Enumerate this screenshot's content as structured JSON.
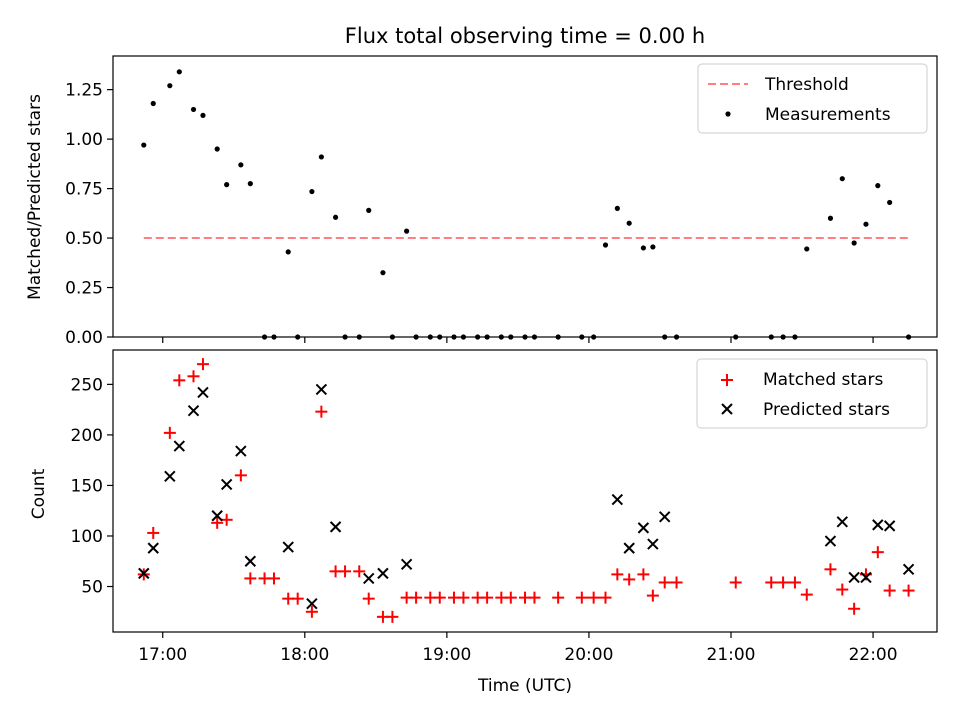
{
  "figure": {
    "title": "Flux total observing time = 0.00 h",
    "xlabel": "Time (UTC)"
  },
  "chart_data": [
    {
      "type": "scatter",
      "ylabel": "Matched/Predicted stars",
      "ylim": [
        0,
        1.42
      ],
      "yticks": [
        0.0,
        0.25,
        0.5,
        0.75,
        1.0,
        1.25
      ],
      "ytick_labels": [
        "0.00",
        "0.25",
        "0.50",
        "0.75",
        "1.00",
        "1.25"
      ],
      "xlim": [
        "16:39",
        "22:27"
      ],
      "xticks": [
        "17:00",
        "18:00",
        "19:00",
        "20:00",
        "21:00",
        "22:00"
      ],
      "grid": false,
      "legend": {
        "placement": "top-right",
        "entries": [
          {
            "label": "Threshold",
            "color": "#ff7f7f",
            "marker": "dashed-line"
          },
          {
            "label": "Measurements",
            "color": "#000000",
            "marker": "dot"
          }
        ]
      },
      "threshold": {
        "value": 0.5,
        "x_range": [
          "16:52",
          "22:15"
        ],
        "color": "#ff7f7f"
      },
      "series": [
        {
          "name": "Measurements",
          "color": "#000000",
          "x": [
            "16:52",
            "16:56",
            "17:03",
            "17:07",
            "17:13",
            "17:17",
            "17:23",
            "17:27",
            "17:33",
            "17:37",
            "17:43",
            "17:47",
            "17:53",
            "17:57",
            "18:03",
            "18:07",
            "18:13",
            "18:17",
            "18:23",
            "18:27",
            "18:33",
            "18:37",
            "18:43",
            "18:47",
            "18:53",
            "18:57",
            "19:03",
            "19:07",
            "19:13",
            "19:17",
            "19:23",
            "19:27",
            "19:33",
            "19:37",
            "19:47",
            "19:57",
            "20:02",
            "20:07",
            "20:12",
            "20:17",
            "20:23",
            "20:27",
            "20:32",
            "20:37",
            "21:02",
            "21:17",
            "21:22",
            "21:27",
            "21:32",
            "21:42",
            "21:47",
            "21:52",
            "21:57",
            "22:02",
            "22:07",
            "22:15"
          ],
          "y": [
            0.97,
            1.18,
            1.27,
            1.34,
            1.15,
            1.12,
            0.95,
            0.77,
            0.87,
            0.775,
            0.0,
            0.0,
            0.43,
            0.0,
            0.735,
            0.91,
            0.605,
            0.0,
            0.0,
            0.64,
            0.325,
            0.0,
            0.535,
            0.0,
            0.0,
            0.0,
            0.0,
            0.0,
            0.0,
            0.0,
            0.0,
            0.0,
            0.0,
            0.0,
            0.0,
            0.0,
            0.0,
            0.465,
            0.65,
            0.575,
            0.45,
            0.455,
            0.0,
            0.0,
            0.0,
            0.0,
            0.0,
            0.0,
            0.445,
            0.6,
            0.8,
            0.475,
            0.57,
            0.765,
            0.68,
            0.0
          ]
        }
      ]
    },
    {
      "type": "scatter",
      "ylabel": "Count",
      "ylim": [
        5,
        284
      ],
      "yticks": [
        50,
        100,
        150,
        200,
        250
      ],
      "ytick_labels": [
        "50",
        "100",
        "150",
        "200",
        "250"
      ],
      "xlim": [
        "16:39",
        "22:27"
      ],
      "xticks": [
        "17:00",
        "18:00",
        "19:00",
        "20:00",
        "21:00",
        "22:00"
      ],
      "xtick_labels": [
        "17:00",
        "18:00",
        "19:00",
        "20:00",
        "21:00",
        "22:00"
      ],
      "grid": false,
      "legend": {
        "placement": "top-right",
        "entries": [
          {
            "label": "Matched stars",
            "color": "#ff0000",
            "marker": "plus"
          },
          {
            "label": "Predicted stars",
            "color": "#000000",
            "marker": "x"
          }
        ]
      },
      "series": [
        {
          "name": "Matched stars",
          "color": "#ff0000",
          "marker": "plus",
          "x": [
            "16:52",
            "16:56",
            "17:03",
            "17:07",
            "17:13",
            "17:17",
            "17:23",
            "17:27",
            "17:33",
            "17:37",
            "17:43",
            "17:47",
            "17:53",
            "17:57",
            "18:03",
            "18:07",
            "18:13",
            "18:17",
            "18:23",
            "18:27",
            "18:33",
            "18:37",
            "18:43",
            "18:47",
            "18:53",
            "18:57",
            "19:03",
            "19:07",
            "19:13",
            "19:17",
            "19:23",
            "19:27",
            "19:33",
            "19:37",
            "19:47",
            "19:57",
            "20:02",
            "20:07",
            "20:12",
            "20:17",
            "20:23",
            "20:27",
            "20:32",
            "20:37",
            "21:02",
            "21:17",
            "21:22",
            "21:27",
            "21:32",
            "21:42",
            "21:47",
            "21:52",
            "21:57",
            "22:02",
            "22:07",
            "22:15"
          ],
          "y": [
            62,
            103,
            202,
            254,
            258,
            270,
            113,
            116,
            160,
            58,
            58,
            58,
            38,
            38,
            25,
            223,
            65,
            65,
            65,
            38,
            20,
            20,
            39,
            39,
            39,
            39,
            39,
            39,
            39,
            39,
            39,
            39,
            39,
            39,
            39,
            39,
            39,
            39,
            62,
            57,
            62,
            41,
            54,
            54,
            54,
            54,
            54,
            54,
            42,
            67,
            47,
            28,
            62,
            84,
            46,
            46
          ]
        },
        {
          "name": "Predicted stars",
          "color": "#000000",
          "marker": "x",
          "x": [
            "16:52",
            "16:56",
            "17:03",
            "17:07",
            "17:13",
            "17:17",
            "17:23",
            "17:27",
            "17:33",
            "17:37",
            "17:53",
            "18:03",
            "18:07",
            "18:13",
            "18:27",
            "18:33",
            "18:43",
            "20:12",
            "20:17",
            "20:23",
            "20:27",
            "20:32",
            "21:42",
            "21:47",
            "21:52",
            "21:57",
            "22:02",
            "22:07",
            "22:15"
          ],
          "y": [
            63,
            88,
            159,
            189,
            224,
            242,
            120,
            151,
            184,
            75,
            89,
            33,
            245,
            109,
            58,
            63,
            72,
            136,
            88,
            108,
            92,
            119,
            95,
            114,
            59,
            59,
            111,
            110,
            67
          ]
        }
      ]
    }
  ]
}
